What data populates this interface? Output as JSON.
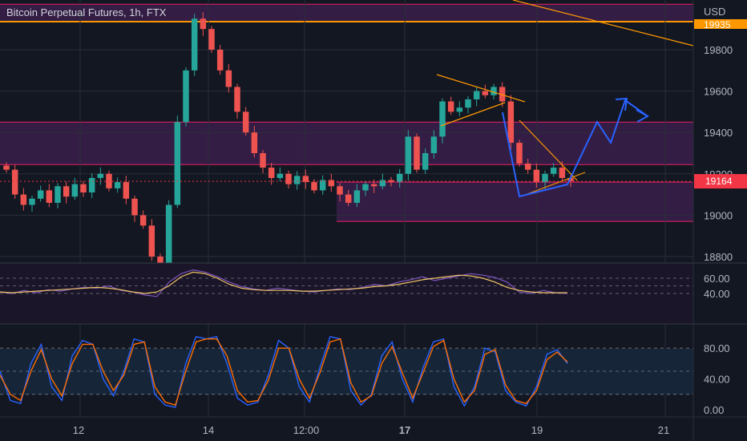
{
  "header": {
    "title": "Bitcoin Perpetual Futures, 1h, FTX",
    "currency": "USD"
  },
  "colors": {
    "up": "#26a69a",
    "down": "#ef5350",
    "zone_fill": "#3b1f4a",
    "zone_line": "#e91e63",
    "trend": "#ff9800",
    "projection": "#2962ff",
    "rsi": "#7e57c2",
    "rsi_ma": "#f0c466",
    "stoch_k": "#2962ff",
    "stoch_d": "#ff6d00",
    "price_badge": "#f23645",
    "top_badge": "#ff9800"
  },
  "chart_data": {
    "type": "candlestick",
    "symbol": "Bitcoin Perpetual Futures",
    "timeframe": "1h",
    "exchange": "FTX",
    "price_axis": {
      "ticks": [
        "19800",
        "19600",
        "19400",
        "19200",
        "19000",
        "18800"
      ],
      "range": [
        18740,
        20020
      ]
    },
    "time_axis": {
      "ticks": [
        "12",
        "14",
        "12:00",
        "17",
        "19",
        "21"
      ]
    },
    "last_price": "19164",
    "top_level_label": "19935",
    "approx_closes": [
      19220,
      19100,
      19050,
      19080,
      19120,
      19060,
      19140,
      19090,
      19150,
      19110,
      19180,
      19200,
      19130,
      19160,
      19080,
      19000,
      18950,
      18800,
      18760,
      19050,
      19450,
      19700,
      19950,
      19900,
      19800,
      19700,
      19620,
      19500,
      19400,
      19300,
      19230,
      19180,
      19200,
      19150,
      19190,
      19160,
      19120,
      19170,
      19140,
      19100,
      19060,
      19120,
      19150,
      19140,
      19170,
      19160,
      19200,
      19380,
      19220,
      19300,
      19380,
      19550,
      19500,
      19520,
      19560,
      19600,
      19580,
      19620,
      19550,
      19350,
      19250,
      19220,
      19160,
      19200,
      19230,
      19180,
      19164
    ],
    "zones": [
      {
        "from": 19935,
        "to": 20020
      },
      {
        "from": 19245,
        "to": 19450
      },
      {
        "from": 18970,
        "to": 19160
      }
    ],
    "rsi": {
      "ticks": [
        "60.00",
        "40.00"
      ],
      "approx_values": [
        42,
        40,
        44,
        41,
        45,
        43,
        46,
        48,
        47,
        50,
        44,
        42,
        38,
        36,
        55,
        66,
        71,
        68,
        62,
        55,
        49,
        46,
        44,
        47,
        45,
        43,
        42,
        44,
        46,
        45,
        48,
        52,
        50,
        55,
        58,
        62,
        57,
        60,
        63,
        66,
        64,
        61,
        55,
        42,
        40,
        44,
        41,
        40
      ]
    },
    "rsi_ma": {
      "approx_values": [
        42,
        41,
        42,
        43,
        44,
        45,
        46,
        47,
        48,
        47,
        45,
        42,
        40,
        42,
        50,
        62,
        68,
        66,
        60,
        52,
        47,
        45,
        44,
        44,
        44,
        43,
        43,
        44,
        45,
        46,
        47,
        49,
        50,
        52,
        55,
        58,
        60,
        62,
        64,
        63,
        60,
        55,
        48,
        44,
        42,
        41,
        41,
        41
      ]
    },
    "stochastic": {
      "ticks": [
        "80.00",
        "40.00",
        "0.00"
      ],
      "k_approx": [
        50,
        12,
        8,
        60,
        85,
        30,
        12,
        70,
        90,
        85,
        40,
        18,
        50,
        92,
        88,
        20,
        6,
        3,
        60,
        95,
        92,
        95,
        60,
        15,
        6,
        10,
        45,
        90,
        80,
        30,
        10,
        55,
        95,
        92,
        25,
        6,
        20,
        70,
        88,
        40,
        10,
        55,
        88,
        92,
        30,
        5,
        30,
        80,
        75,
        25,
        10,
        5,
        30,
        72,
        78,
        60
      ],
      "d_approx": [
        45,
        20,
        12,
        50,
        78,
        40,
        18,
        60,
        85,
        85,
        50,
        25,
        45,
        85,
        88,
        30,
        10,
        6,
        50,
        88,
        92,
        92,
        70,
        25,
        10,
        12,
        38,
        80,
        80,
        40,
        15,
        48,
        88,
        92,
        35,
        10,
        18,
        60,
        82,
        48,
        15,
        48,
        82,
        90,
        40,
        10,
        25,
        72,
        78,
        32,
        12,
        8,
        25,
        65,
        75,
        62
      ]
    }
  }
}
